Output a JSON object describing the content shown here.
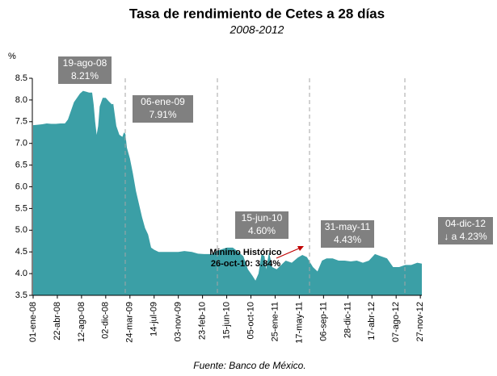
{
  "chart_data": {
    "type": "area",
    "title": "Tasa de rendimiento de Cetes a 28 días",
    "subtitle": "2008-2012",
    "y_label": "%",
    "source": "Fuente: Banco de México.",
    "ylim": [
      3.5,
      8.5
    ],
    "yticks": [
      3.5,
      {
        "value": 4,
        "label": "4.0"
      },
      4.5,
      {
        "value": 5,
        "label": "5.0"
      },
      5.5,
      {
        "value": 6,
        "label": "6.0"
      },
      6.5,
      {
        "value": 7,
        "label": "7.0"
      },
      7.5,
      {
        "value": 8,
        "label": "8.0"
      },
      8.5
    ],
    "xlim": [
      "2008-01-01",
      "2012-12-04"
    ],
    "xticks": [
      {
        "value": "2008-01-01",
        "label": "01-ene-08"
      },
      {
        "value": "2008-04-22",
        "label": "22-abr-08"
      },
      {
        "value": "2008-08-12",
        "label": "12-ago-08"
      },
      {
        "value": "2008-12-02",
        "label": "02-dic-08"
      },
      {
        "value": "2009-03-24",
        "label": "24-mar-09"
      },
      {
        "value": "2009-07-14",
        "label": "14-jul-09"
      },
      {
        "value": "2009-11-03",
        "label": "03-nov-09"
      },
      {
        "value": "2010-02-23",
        "label": "23-feb-10"
      },
      {
        "value": "2010-06-15",
        "label": "15-jun-10"
      },
      {
        "value": "2010-10-05",
        "label": "05-oct-10"
      },
      {
        "value": "2011-01-25",
        "label": "25-ene-11"
      },
      {
        "value": "2011-05-17",
        "label": "17-may-11"
      },
      {
        "value": "2011-09-06",
        "label": "06-sep-11"
      },
      {
        "value": "2011-12-28",
        "label": "28-dic-11"
      },
      {
        "value": "2012-04-17",
        "label": "17-abr-12"
      },
      {
        "value": "2012-08-07",
        "label": "07-ago-12"
      },
      {
        "value": "2012-11-27",
        "label": "27-nov-12"
      }
    ],
    "series": [
      {
        "color": "#3b9fa6",
        "x": [
          "2008-01-01",
          "2008-01-22",
          "2008-02-12",
          "2008-03-04",
          "2008-03-25",
          "2008-04-15",
          "2008-05-06",
          "2008-05-27",
          "2008-06-10",
          "2008-06-24",
          "2008-07-08",
          "2008-07-22",
          "2008-08-05",
          "2008-08-19",
          "2008-09-02",
          "2008-09-16",
          "2008-09-30",
          "2008-10-07",
          "2008-10-14",
          "2008-10-21",
          "2008-10-28",
          "2008-11-04",
          "2008-11-18",
          "2008-12-02",
          "2008-12-16",
          "2008-12-30",
          "2009-01-06",
          "2009-01-20",
          "2009-02-03",
          "2009-02-17",
          "2009-02-24",
          "2009-03-03",
          "2009-03-10",
          "2009-03-24",
          "2009-04-07",
          "2009-04-21",
          "2009-05-05",
          "2009-05-19",
          "2009-06-02",
          "2009-06-16",
          "2009-06-30",
          "2009-07-14",
          "2009-08-04",
          "2009-09-01",
          "2009-10-06",
          "2009-11-03",
          "2009-12-01",
          "2010-01-05",
          "2010-02-02",
          "2010-03-02",
          "2010-04-06",
          "2010-05-04",
          "2010-06-15",
          "2010-07-13",
          "2010-08-03",
          "2010-08-31",
          "2010-09-21",
          "2010-10-12",
          "2010-10-26",
          "2010-11-09",
          "2010-11-23",
          "2010-12-07",
          "2010-12-14",
          "2010-12-28",
          "2011-01-11",
          "2011-02-01",
          "2011-02-22",
          "2011-03-15",
          "2011-04-12",
          "2011-05-10",
          "2011-05-31",
          "2011-06-21",
          "2011-07-19",
          "2011-08-09",
          "2011-08-30",
          "2011-09-20",
          "2011-10-18",
          "2011-11-15",
          "2011-12-13",
          "2012-01-10",
          "2012-02-07",
          "2012-03-06",
          "2012-04-03",
          "2012-05-01",
          "2012-05-29",
          "2012-06-26",
          "2012-07-24",
          "2012-08-21",
          "2012-09-18",
          "2012-10-16",
          "2012-11-13",
          "2012-12-04"
        ],
        "values": [
          7.42,
          7.43,
          7.44,
          7.46,
          7.45,
          7.45,
          7.46,
          7.46,
          7.55,
          7.75,
          7.95,
          8.05,
          8.15,
          8.21,
          8.19,
          8.17,
          8.17,
          7.9,
          7.5,
          7.2,
          7.4,
          7.85,
          8.05,
          8.05,
          7.97,
          7.9,
          7.91,
          7.4,
          7.2,
          7.15,
          7.25,
          7.22,
          6.9,
          6.65,
          6.3,
          5.9,
          5.6,
          5.3,
          5.05,
          4.9,
          4.6,
          4.55,
          4.5,
          4.5,
          4.5,
          4.5,
          4.52,
          4.5,
          4.46,
          4.45,
          4.45,
          4.53,
          4.6,
          4.6,
          4.52,
          4.4,
          4.1,
          3.95,
          3.84,
          4.0,
          4.45,
          4.4,
          4.1,
          4.5,
          4.15,
          4.1,
          4.2,
          4.3,
          4.25,
          4.37,
          4.43,
          4.38,
          4.15,
          4.05,
          4.3,
          4.35,
          4.35,
          4.3,
          4.3,
          4.28,
          4.3,
          4.25,
          4.3,
          4.45,
          4.4,
          4.35,
          4.15,
          4.15,
          4.2,
          4.2,
          4.25,
          4.23
        ]
      }
    ],
    "annotations": [
      {
        "lines": [
          "19-ago-08",
          "8.21%"
        ]
      },
      {
        "lines": [
          "06-ene-09",
          "7.91%"
        ]
      },
      {
        "lines": [
          "15-jun-10",
          "4.60%"
        ]
      },
      {
        "lines": [
          "31-may-11",
          "4.43%"
        ]
      },
      {
        "lines": [
          "04-dic-12",
          "↓ a 4.23%"
        ]
      },
      {
        "lines": [
          "Mínimo Histórico",
          "26-oct-10: 3.84%"
        ]
      }
    ]
  }
}
